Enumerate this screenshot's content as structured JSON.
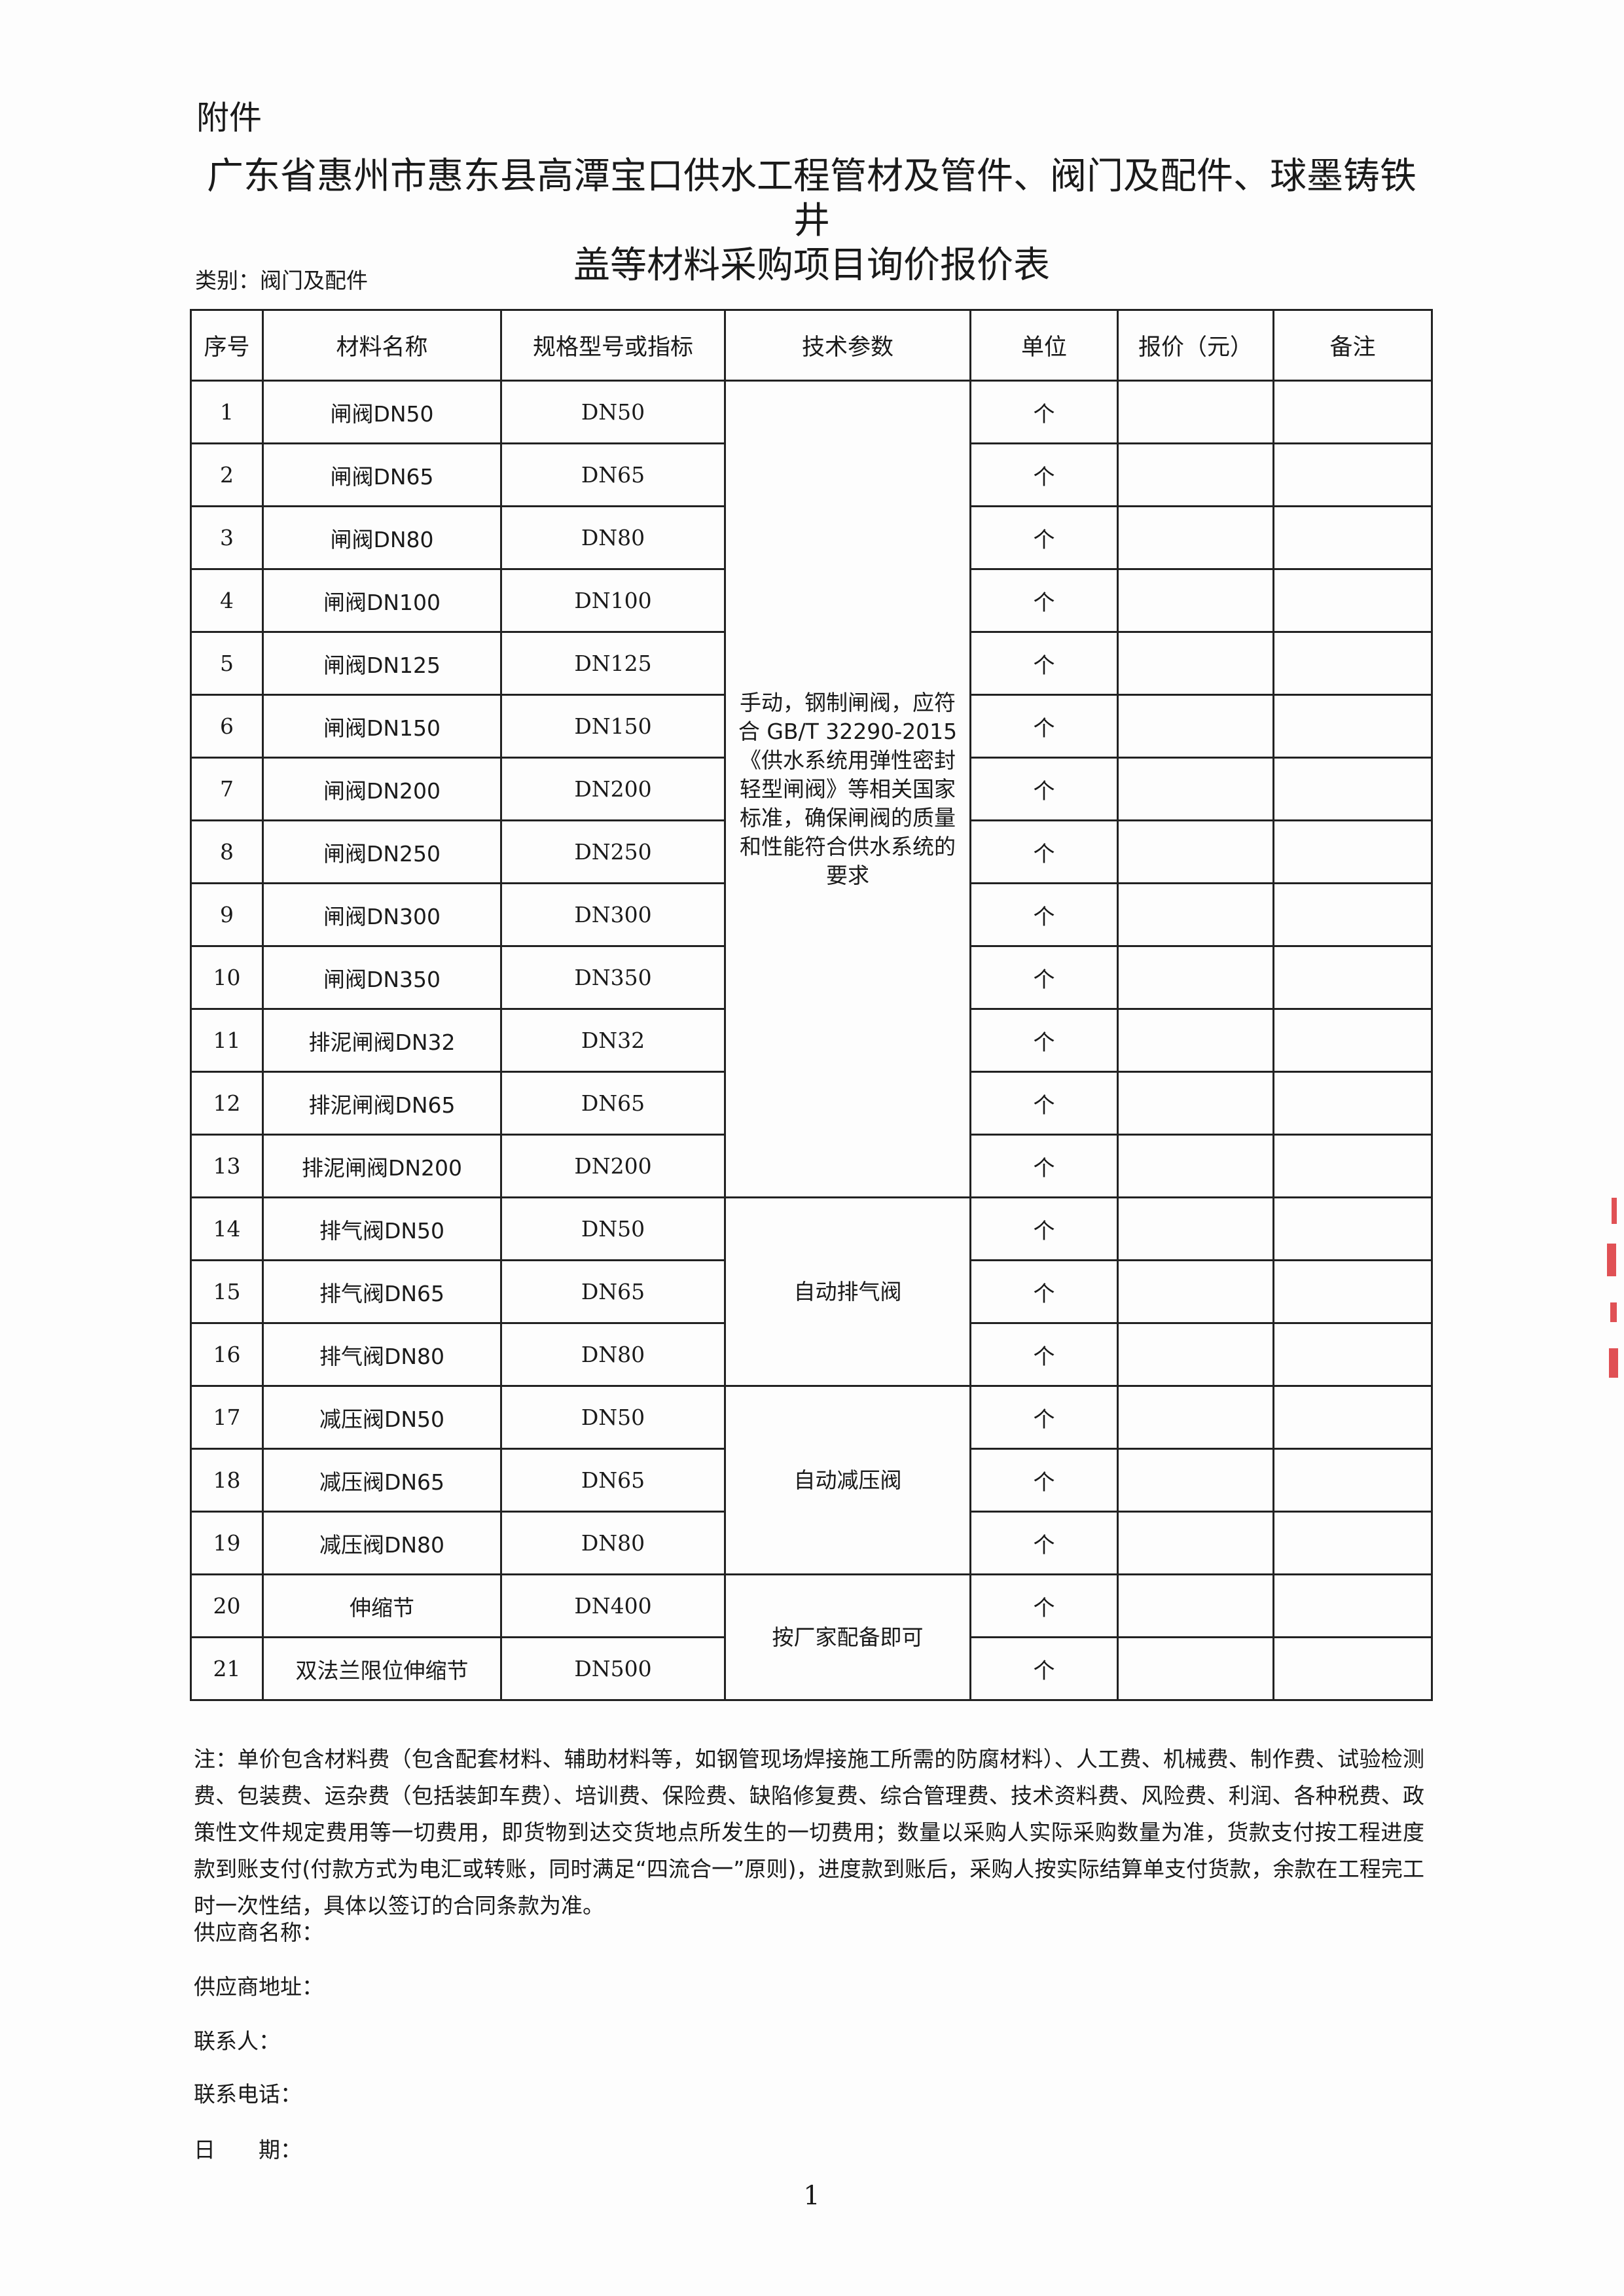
{
  "header": {
    "attachment": "附件",
    "title_line1": "广东省惠州市惠东县高潭宝口供水工程管材及管件、阀门及配件、球墨铸铁井",
    "title_line2": "盖等材料采购项目询价报价表",
    "category": "类别：阀门及配件"
  },
  "table": {
    "columns": [
      "序号",
      "材料名称",
      "规格型号或指标",
      "技术参数",
      "单位",
      "报价（元）",
      "备注"
    ],
    "rows": [
      {
        "no": "1",
        "name": "闸阀DN50",
        "spec": "DN50",
        "unit": "个"
      },
      {
        "no": "2",
        "name": "闸阀DN65",
        "spec": "DN65",
        "unit": "个"
      },
      {
        "no": "3",
        "name": "闸阀DN80",
        "spec": "DN80",
        "unit": "个"
      },
      {
        "no": "4",
        "name": "闸阀DN100",
        "spec": "DN100",
        "unit": "个"
      },
      {
        "no": "5",
        "name": "闸阀DN125",
        "spec": "DN125",
        "unit": "个"
      },
      {
        "no": "6",
        "name": "闸阀DN150",
        "spec": "DN150",
        "unit": "个"
      },
      {
        "no": "7",
        "name": "闸阀DN200",
        "spec": "DN200",
        "unit": "个"
      },
      {
        "no": "8",
        "name": "闸阀DN250",
        "spec": "DN250",
        "unit": "个"
      },
      {
        "no": "9",
        "name": "闸阀DN300",
        "spec": "DN300",
        "unit": "个"
      },
      {
        "no": "10",
        "name": "闸阀DN350",
        "spec": "DN350",
        "unit": "个"
      },
      {
        "no": "11",
        "name": "排泥闸阀DN32",
        "spec": "DN32",
        "unit": "个"
      },
      {
        "no": "12",
        "name": "排泥闸阀DN65",
        "spec": "DN65",
        "unit": "个"
      },
      {
        "no": "13",
        "name": "排泥闸阀DN200",
        "spec": "DN200",
        "unit": "个"
      },
      {
        "no": "14",
        "name": "排气阀DN50",
        "spec": "DN50",
        "unit": "个"
      },
      {
        "no": "15",
        "name": "排气阀DN65",
        "spec": "DN65",
        "unit": "个"
      },
      {
        "no": "16",
        "name": "排气阀DN80",
        "spec": "DN80",
        "unit": "个"
      },
      {
        "no": "17",
        "name": "减压阀DN50",
        "spec": "DN50",
        "unit": "个"
      },
      {
        "no": "18",
        "name": "减压阀DN65",
        "spec": "DN65",
        "unit": "个"
      },
      {
        "no": "19",
        "name": "减压阀DN80",
        "spec": "DN80",
        "unit": "个"
      },
      {
        "no": "20",
        "name": "伸缩节",
        "spec": "DN400",
        "unit": "个"
      },
      {
        "no": "21",
        "name": "双法兰限位伸缩节",
        "spec": "DN500",
        "unit": "个"
      }
    ],
    "tech_groups": [
      {
        "start": 0,
        "span": 13,
        "text": "手动，钢制闸阀，应符合 GB/T 32290-2015《供水系统用弹性密封轻型闸阀》等相关国家标准，确保闸阀的质量和性能符合供水系统的要求"
      },
      {
        "start": 13,
        "span": 3,
        "text": "自动排气阀"
      },
      {
        "start": 16,
        "span": 3,
        "text": "自动减压阀"
      },
      {
        "start": 19,
        "span": 2,
        "text": "按厂家配备即可"
      }
    ]
  },
  "note": "注：单价包含材料费（包含配套材料、辅助材料等，如钢管现场焊接施工所需的防腐材料）、人工费、机械费、制作费、试验检测费、包装费、运杂费（包括装卸车费）、培训费、保险费、缺陷修复费、综合管理费、技术资料费、风险费、利润、各种税费、政策性文件规定费用等一切费用，即货物到达交货地点所发生的一切费用；数量以采购人实际采购数量为准，货款支付按工程进度款到账支付(付款方式为电汇或转账，同时满足“四流合一”原则)，进度款到账后，采购人按实际结算单支付货款，余款在工程完工时一次性结，具体以签订的合同条款为准。",
  "supplier": {
    "name_label": "供应商名称：",
    "address_label": "供应商地址：",
    "contact_label": "联系人：",
    "phone_label": "联系电话：",
    "date_label": "日　　期："
  },
  "page_number": "1",
  "colors": {
    "stamp": "#d8262b"
  }
}
